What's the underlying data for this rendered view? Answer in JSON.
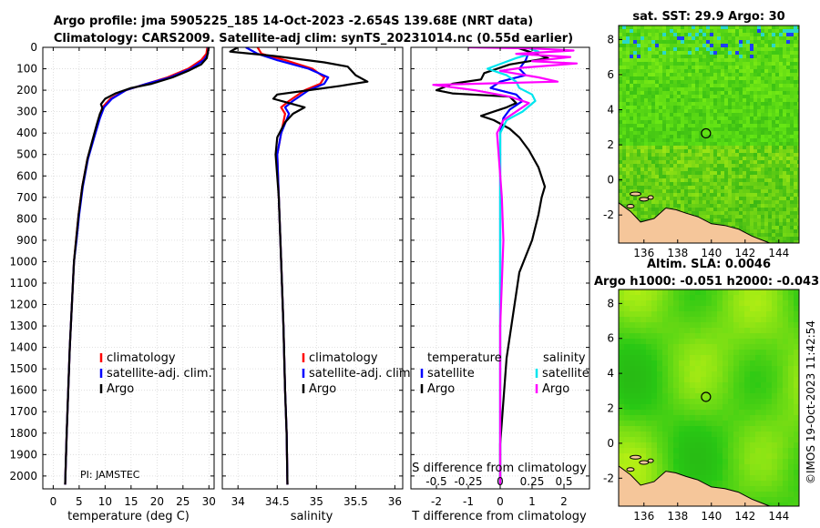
{
  "figure": {
    "title_line1": "Argo profile: jma 5905225_185 14-Oct-2023 -2.654S 139.68E (NRT data)",
    "title_line2": "Climatology: CARS2009. Satellite-adj clim: synTS_20231014.nc (0.55d earlier)",
    "watermark": "©IMOS 19-Oct-2023 11:42:54",
    "pi_label": "PI: JAMSTEC"
  },
  "colors": {
    "climatology": "#ff0000",
    "satellite": "#0000ff",
    "argo": "#000000",
    "sat_salinity": "#00e5ee",
    "salinity_diff": "#ff00ff",
    "land": "#f5c69a"
  },
  "chart_data": [
    {
      "type": "line",
      "id": "temperature",
      "xlabel": "temperature (deg C)",
      "ylabel": "",
      "xlim": [
        -2,
        31
      ],
      "ylim": [
        2060,
        0
      ],
      "xticks": [
        0,
        5,
        10,
        15,
        20,
        25,
        30
      ],
      "yticks": [
        0,
        100,
        200,
        300,
        400,
        500,
        600,
        700,
        800,
        900,
        1000,
        1100,
        1200,
        1300,
        1400,
        1500,
        1600,
        1700,
        1800,
        1900,
        2000
      ],
      "legend": [
        "climatology",
        "satellite-adj. clim.",
        "Argo"
      ],
      "series": [
        {
          "name": "climatology",
          "color": "#ff0000",
          "points": [
            [
              29.7,
              0
            ],
            [
              29.5,
              30
            ],
            [
              28.5,
              60
            ],
            [
              26,
              100
            ],
            [
              22,
              140
            ],
            [
              18,
              170
            ],
            [
              14,
              200
            ],
            [
              11,
              240
            ],
            [
              9.5,
              280
            ],
            [
              8.8,
              330
            ],
            [
              7.8,
              420
            ],
            [
              6.6,
              520
            ],
            [
              5.6,
              650
            ],
            [
              4.9,
              780
            ],
            [
              4.4,
              900
            ],
            [
              4,
              1000
            ],
            [
              3.6,
              1200
            ],
            [
              3.2,
              1400
            ],
            [
              2.9,
              1600
            ],
            [
              2.6,
              1800
            ],
            [
              2.3,
              2040
            ]
          ]
        },
        {
          "name": "satellite-adj. clim.",
          "color": "#0000ff",
          "points": [
            [
              29.9,
              0
            ],
            [
              29.8,
              30
            ],
            [
              29,
              60
            ],
            [
              26.5,
              100
            ],
            [
              22.5,
              140
            ],
            [
              18,
              170
            ],
            [
              14,
              200
            ],
            [
              11.3,
              240
            ],
            [
              9.8,
              280
            ],
            [
              9,
              330
            ],
            [
              7.9,
              420
            ],
            [
              6.7,
              520
            ],
            [
              5.7,
              650
            ],
            [
              5,
              780
            ],
            [
              4.5,
              900
            ],
            [
              4,
              1000
            ],
            [
              3.6,
              1200
            ],
            [
              3.2,
              1400
            ],
            [
              2.9,
              1600
            ],
            [
              2.6,
              1800
            ],
            [
              2.3,
              2040
            ]
          ]
        },
        {
          "name": "Argo",
          "color": "#000000",
          "points": [
            [
              30,
              0
            ],
            [
              29.8,
              20
            ],
            [
              29.6,
              50
            ],
            [
              28.5,
              80
            ],
            [
              26,
              110
            ],
            [
              23,
              140
            ],
            [
              19,
              170
            ],
            [
              15,
              190
            ],
            [
              12,
              215
            ],
            [
              10,
              240
            ],
            [
              9.2,
              265
            ],
            [
              9.5,
              285
            ],
            [
              9,
              310
            ],
            [
              8.4,
              360
            ],
            [
              7.6,
              430
            ],
            [
              6.6,
              520
            ],
            [
              5.6,
              650
            ],
            [
              4.9,
              780
            ],
            [
              4.4,
              900
            ],
            [
              4,
              1000
            ],
            [
              3.6,
              1200
            ],
            [
              3.2,
              1400
            ],
            [
              2.9,
              1600
            ],
            [
              2.6,
              1800
            ],
            [
              2.3,
              2040
            ]
          ]
        }
      ]
    },
    {
      "type": "line",
      "id": "salinity",
      "xlabel": "salinity",
      "ylabel": "",
      "xlim": [
        33.8,
        36.1
      ],
      "ylim": [
        2060,
        0
      ],
      "xticks": [
        34,
        34.5,
        35,
        35.5,
        36
      ],
      "xtick_labels": [
        "34",
        "34.5",
        "35",
        "35.5",
        "36"
      ],
      "legend": [
        "climatology",
        "satellite-adj. clim.",
        "Argo"
      ],
      "series": [
        {
          "name": "climatology",
          "color": "#ff0000",
          "points": [
            [
              34.25,
              0
            ],
            [
              34.3,
              30
            ],
            [
              34.6,
              60
            ],
            [
              34.95,
              100
            ],
            [
              35.1,
              140
            ],
            [
              35.05,
              170
            ],
            [
              34.85,
              200
            ],
            [
              34.65,
              250
            ],
            [
              34.55,
              280
            ],
            [
              34.6,
              310
            ],
            [
              34.55,
              400
            ],
            [
              34.5,
              500
            ],
            [
              34.52,
              700
            ],
            [
              34.55,
              1000
            ],
            [
              34.58,
              1300
            ],
            [
              34.6,
              1600
            ],
            [
              34.62,
              1800
            ],
            [
              34.63,
              2040
            ]
          ]
        },
        {
          "name": "satellite-adj. clim.",
          "color": "#0000ff",
          "points": [
            [
              34.1,
              0
            ],
            [
              34.25,
              30
            ],
            [
              34.5,
              60
            ],
            [
              34.9,
              100
            ],
            [
              35.15,
              140
            ],
            [
              35.1,
              170
            ],
            [
              34.9,
              200
            ],
            [
              34.7,
              250
            ],
            [
              34.6,
              280
            ],
            [
              34.65,
              310
            ],
            [
              34.55,
              400
            ],
            [
              34.5,
              500
            ],
            [
              34.52,
              700
            ],
            [
              34.55,
              1000
            ],
            [
              34.58,
              1300
            ],
            [
              34.6,
              1600
            ],
            [
              34.62,
              1800
            ],
            [
              34.63,
              2040
            ]
          ]
        },
        {
          "name": "Argo",
          "color": "#000000",
          "points": [
            [
              34.0,
              0
            ],
            [
              33.9,
              20
            ],
            [
              34.45,
              40
            ],
            [
              35.1,
              70
            ],
            [
              35.4,
              90
            ],
            [
              35.5,
              130
            ],
            [
              35.65,
              160
            ],
            [
              35.3,
              180
            ],
            [
              34.9,
              200
            ],
            [
              34.5,
              220
            ],
            [
              34.45,
              240
            ],
            [
              34.65,
              260
            ],
            [
              34.85,
              280
            ],
            [
              34.7,
              310
            ],
            [
              34.6,
              350
            ],
            [
              34.5,
              420
            ],
            [
              34.48,
              500
            ],
            [
              34.52,
              700
            ],
            [
              34.55,
              1000
            ],
            [
              34.58,
              1300
            ],
            [
              34.6,
              1600
            ],
            [
              34.62,
              1800
            ],
            [
              34.63,
              2040
            ]
          ]
        }
      ]
    },
    {
      "type": "line",
      "id": "difference",
      "xlabel": "T difference from climatology",
      "top_label": "S difference from climatology",
      "xlim": [
        -2.8,
        2.8
      ],
      "ylim": [
        2060,
        0
      ],
      "xticks": [
        -2,
        -1,
        0,
        1,
        2
      ],
      "xtick_labels": [
        "-2",
        "-1",
        "0",
        "1",
        "2"
      ],
      "s_ticks": [
        -0.5,
        -0.25,
        0,
        0.25,
        0.5
      ],
      "s_tick_labels": [
        "-0.5",
        "-0.25",
        "0",
        "0.25",
        "0.5"
      ],
      "legend_headers": [
        "temperature",
        "salinity"
      ],
      "legend_left": [
        "satellite",
        "Argo"
      ],
      "legend_right": [
        "satellite",
        "Argo"
      ],
      "series": [
        {
          "name": "T satellite",
          "color": "#0000ff",
          "points": [
            [
              0.5,
              0
            ],
            [
              0.9,
              20
            ],
            [
              0.8,
              60
            ],
            [
              0.6,
              100
            ],
            [
              0.8,
              130
            ],
            [
              0,
              160
            ],
            [
              -0.3,
              190
            ],
            [
              0.5,
              220
            ],
            [
              0.7,
              250
            ],
            [
              0.3,
              290
            ],
            [
              0.1,
              330
            ],
            [
              0,
              400
            ],
            [
              0,
              600
            ],
            [
              0,
              1000
            ],
            [
              0,
              1500
            ],
            [
              0,
              2040
            ]
          ]
        },
        {
          "name": "T Argo",
          "color": "#000000",
          "points": [
            [
              0.5,
              0
            ],
            [
              0.9,
              20
            ],
            [
              1.5,
              50
            ],
            [
              0.3,
              80
            ],
            [
              -0.5,
              120
            ],
            [
              -0.6,
              150
            ],
            [
              -1.5,
              170
            ],
            [
              -2.0,
              200
            ],
            [
              -1.5,
              215
            ],
            [
              0.3,
              230
            ],
            [
              0.5,
              260
            ],
            [
              0.2,
              280
            ],
            [
              -0.2,
              300
            ],
            [
              -0.6,
              320
            ],
            [
              -0.2,
              340
            ],
            [
              0.3,
              380
            ],
            [
              0.6,
              420
            ],
            [
              0.9,
              480
            ],
            [
              1.2,
              560
            ],
            [
              1.4,
              650
            ],
            [
              1.3,
              700
            ],
            [
              1.2,
              780
            ],
            [
              1.0,
              900
            ],
            [
              0.6,
              1050
            ],
            [
              0.4,
              1250
            ],
            [
              0.2,
              1450
            ],
            [
              0.1,
              1650
            ],
            [
              0,
              1850
            ],
            [
              0,
              2040
            ]
          ]
        },
        {
          "name": "S satellite",
          "color": "#00e5ee",
          "points": [
            [
              0.8,
              0
            ],
            [
              1.2,
              20
            ],
            [
              0.5,
              50
            ],
            [
              -0.4,
              100
            ],
            [
              0.2,
              130
            ],
            [
              0.5,
              160
            ],
            [
              0.6,
              190
            ],
            [
              1.0,
              220
            ],
            [
              1.1,
              250
            ],
            [
              0.7,
              300
            ],
            [
              0.2,
              340
            ],
            [
              0,
              400
            ],
            [
              0,
              600
            ],
            [
              0,
              1000
            ],
            [
              0,
              1500
            ],
            [
              0,
              2040
            ]
          ]
        },
        {
          "name": "S Argo",
          "color": "#ff00ff",
          "points": [
            [
              -1.0,
              0
            ],
            [
              1.0,
              5
            ],
            [
              2.3,
              15
            ],
            [
              0.5,
              30
            ],
            [
              2.2,
              45
            ],
            [
              1.0,
              65
            ],
            [
              2.4,
              75
            ],
            [
              0.7,
              95
            ],
            [
              0.0,
              110
            ],
            [
              1.2,
              140
            ],
            [
              1.8,
              160
            ],
            [
              -2.1,
              175
            ],
            [
              -0.8,
              200
            ],
            [
              0.3,
              230
            ],
            [
              0.9,
              260
            ],
            [
              0.5,
              300
            ],
            [
              0.1,
              340
            ],
            [
              -0.1,
              400
            ],
            [
              -0.05,
              500
            ],
            [
              0.05,
              700
            ],
            [
              0.1,
              900
            ],
            [
              0.05,
              1100
            ],
            [
              0,
              1300
            ],
            [
              0,
              1600
            ],
            [
              0,
              2040
            ]
          ]
        }
      ]
    },
    {
      "type": "heatmap",
      "id": "sst_map",
      "title": "sat. SST: 29.9 Argo: 30",
      "xticks": [
        136,
        138,
        140,
        142,
        144
      ],
      "yticks": [
        -2,
        0,
        2,
        4,
        6,
        8
      ],
      "xlim": [
        134.5,
        145.2
      ],
      "ylim": [
        -3.6,
        8.8
      ],
      "argo_position": [
        139.68,
        -2.654
      ]
    },
    {
      "type": "heatmap",
      "id": "sla_map",
      "title": "Altim. SLA: 0.0046",
      "subtitle": "Argo h1000: -0.051 h2000: -0.043",
      "xticks": [
        136,
        138,
        140,
        142,
        144
      ],
      "yticks": [
        -2,
        0,
        2,
        4,
        6,
        8
      ],
      "xlim": [
        134.5,
        145.2
      ],
      "ylim": [
        -3.6,
        8.8
      ],
      "argo_position": [
        139.68,
        -2.654
      ]
    }
  ]
}
